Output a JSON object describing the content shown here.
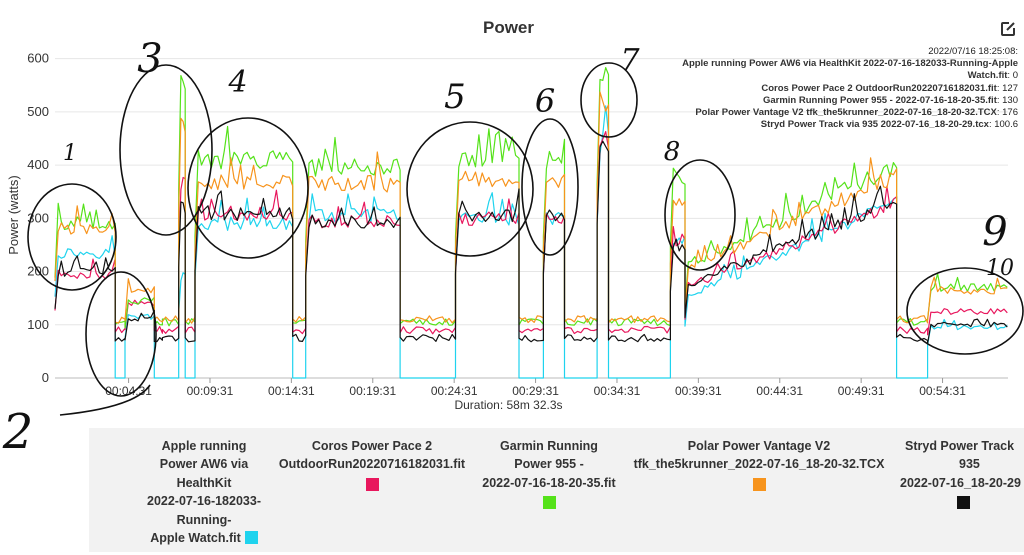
{
  "chart_title": "Power",
  "tooltip": {
    "timestamp": "2022/07/16 18:25:08:",
    "entries": [
      {
        "label": "Apple running Power AW6 via HealthKit 2022-07-16-182033-Running-Apple Watch.fit",
        "value": "0",
        "color": "#1fd3ee"
      },
      {
        "label": "Coros Power Pace 2 OutdoorRun20220716182031.fit",
        "value": "127",
        "color": "#e8175d"
      },
      {
        "label": "Garmin Running Power 955 - 2022-07-16-18-20-35.fit",
        "value": "130",
        "color": "#55e21a"
      },
      {
        "label": "Polar Power Vantage V2 tfk_the5krunner_2022-07-16_18-20-32.TCX",
        "value": "176",
        "color": "#f7941d"
      },
      {
        "label": "Stryd Power Track via 935 2022-07-16_18-20-29.tcx",
        "value": "100.6",
        "color": "#111111"
      }
    ]
  },
  "legend": [
    {
      "label": "Apple running Power AW6 via HealthKit 2022-07-16-182033-Running-Apple Watch.fit",
      "color": "#1fd3ee"
    },
    {
      "label": "Coros Power Pace 2 OutdoorRun20220716182031.fit",
      "color": "#e8175d"
    },
    {
      "label": "Garmin Running Power 955 - 2022-07-16-18-20-35.fit",
      "color": "#55e21a"
    },
    {
      "label": "Polar Power Vantage V2 tfk_the5krunner_2022-07-16_18-20-32.TCX",
      "color": "#f7941d"
    },
    {
      "label": "Stryd Power Track 935 2022-07-16_18-20-29.tcx",
      "color": "#111111"
    }
  ],
  "legend_lines": [
    [
      "Apple running",
      "Power AW6 via",
      "HealthKit",
      "2022-07-16-182033-",
      "Running-",
      "Apple Watch.fit"
    ],
    [
      "Coros Power Pace 2",
      "OutdoorRun20220716182031.fit"
    ],
    [
      "Garmin Running",
      "Power 955 -",
      "2022-07-16-18-20-35.fit"
    ],
    [
      "Polar Power Vantage V2",
      "tfk_the5krunner_2022-07-16_18-20-32.TCX"
    ],
    [
      "Stryd Power Track",
      "935",
      "2022-07-16_18-20-29"
    ]
  ],
  "annotations": [
    "1",
    "2",
    "3",
    "4",
    "5",
    "6",
    "7",
    "8",
    "9",
    "10"
  ],
  "chart_data": {
    "type": "line",
    "title": "Power",
    "ylabel": "Power (watts)",
    "xlabel": "Duration: 58m 32.3s",
    "ylim": [
      0,
      620
    ],
    "xlim_min": [
      0,
      58.54
    ],
    "yticks": [
      0,
      100,
      200,
      300,
      400,
      500,
      600
    ],
    "xticks": [
      "00:04:31",
      "00:09:31",
      "00:14:31",
      "00:19:31",
      "00:24:31",
      "00:29:31",
      "00:34:31",
      "00:39:31",
      "00:44:31",
      "00:49:31",
      "00:54:31"
    ],
    "xtick_minutes": [
      4.52,
      9.52,
      14.52,
      19.52,
      24.52,
      29.52,
      34.52,
      39.52,
      44.52,
      49.52,
      54.52
    ],
    "grid": "horizontal",
    "segments_min": [
      {
        "start": 0.0,
        "end": 3.7,
        "level": "high1"
      },
      {
        "start": 3.7,
        "end": 4.3,
        "level": "rest"
      },
      {
        "start": 4.3,
        "end": 6.1,
        "level": "mid"
      },
      {
        "start": 6.1,
        "end": 6.6,
        "level": "rest"
      },
      {
        "start": 6.6,
        "end": 7.6,
        "level": "rest"
      },
      {
        "start": 7.6,
        "end": 8.0,
        "level": "spike"
      },
      {
        "start": 8.0,
        "end": 8.6,
        "level": "rest"
      },
      {
        "start": 8.6,
        "end": 14.6,
        "level": "high2"
      },
      {
        "start": 14.6,
        "end": 15.4,
        "level": "rest"
      },
      {
        "start": 15.4,
        "end": 21.2,
        "level": "high3"
      },
      {
        "start": 21.2,
        "end": 24.6,
        "level": "rest"
      },
      {
        "start": 24.6,
        "end": 28.5,
        "level": "high4"
      },
      {
        "start": 28.5,
        "end": 30.0,
        "level": "rest"
      },
      {
        "start": 30.0,
        "end": 31.3,
        "level": "high5"
      },
      {
        "start": 31.3,
        "end": 33.3,
        "level": "rest"
      },
      {
        "start": 33.3,
        "end": 34.0,
        "level": "high6"
      },
      {
        "start": 34.0,
        "end": 37.8,
        "level": "rest"
      },
      {
        "start": 37.8,
        "end": 38.7,
        "level": "high7"
      },
      {
        "start": 38.7,
        "end": 51.7,
        "level": "ramp"
      },
      {
        "start": 51.7,
        "end": 53.6,
        "level": "rest"
      },
      {
        "start": 53.6,
        "end": 58.5,
        "level": "tail"
      }
    ],
    "series": [
      {
        "name": "Apple running Power AW6 via HealthKit 2022-07-16-182033-Running-Apple Watch.fit",
        "color": "#1fd3ee",
        "levels": {
          "rest": 0,
          "mid": 115,
          "spike": 190,
          "high1": 235,
          "high2": 290,
          "high3": 305,
          "high4": 300,
          "high5": 300,
          "high6": 440,
          "high7": 260,
          "ramp_from": 150,
          "ramp_to": 330,
          "tail": 95
        }
      },
      {
        "name": "Coros Power Pace 2 OutdoorRun20220716182031.fit",
        "color": "#e8175d",
        "levels": {
          "rest": 90,
          "mid": 140,
          "spike": 370,
          "high1": 195,
          "high2": 310,
          "high3": 295,
          "high4": 300,
          "high5": 300,
          "high6": 450,
          "high7": 260,
          "ramp_from": 170,
          "ramp_to": 330,
          "tail": 125
        }
      },
      {
        "name": "Garmin Running Power 955 - 2022-07-16-18-20-35.fit",
        "color": "#55e21a",
        "levels": {
          "rest": 105,
          "mid": 145,
          "spike": 545,
          "high1": 290,
          "high2": 410,
          "high3": 395,
          "high4": 410,
          "high5": 410,
          "high6": 560,
          "high7": 380,
          "ramp_from": 210,
          "ramp_to": 400,
          "tail": 170
        }
      },
      {
        "name": "Polar Power Vantage V2 tfk_the5krunner_2022-07-16_18-20-32.TCX",
        "color": "#f7941d",
        "levels": {
          "rest": 110,
          "mid": 165,
          "spike": 470,
          "high1": 280,
          "high2": 370,
          "high3": 365,
          "high4": 375,
          "high5": 375,
          "high6": 520,
          "high7": 330,
          "ramp_from": 200,
          "ramp_to": 380,
          "tail": 165
        }
      },
      {
        "name": "Stryd Power Track via 935 2022-07-16_18-20-29.tcx",
        "color": "#111111",
        "levels": {
          "rest": 75,
          "mid": 110,
          "spike": 320,
          "high1": 200,
          "high2": 310,
          "high3": 295,
          "high4": 305,
          "high5": 305,
          "high6": 445,
          "high7": 250,
          "ramp_from": 175,
          "ramp_to": 330,
          "tail": 100
        }
      }
    ]
  }
}
